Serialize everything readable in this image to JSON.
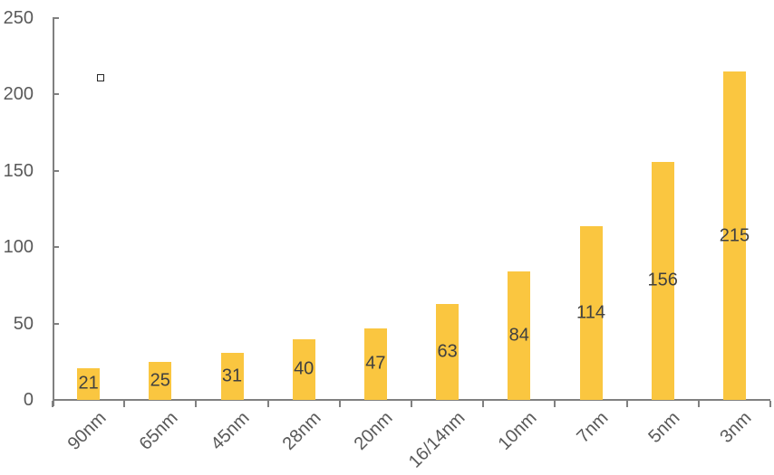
{
  "chart_data": {
    "type": "bar",
    "title": "",
    "xlabel": "",
    "ylabel": "",
    "categories": [
      "90nm",
      "65nm",
      "45nm",
      "28nm",
      "20nm",
      "16/14nm",
      "10nm",
      "7nm",
      "5nm",
      "3nm"
    ],
    "values": [
      21,
      25,
      31,
      40,
      47,
      63,
      84,
      114,
      156,
      215
    ],
    "data_labels": [
      "21",
      "25",
      "31",
      "40",
      "47",
      "63",
      "84",
      "114",
      "156",
      "215"
    ],
    "y_ticks": [
      0,
      50,
      100,
      150,
      200,
      250
    ],
    "y_tick_labels": [
      "0",
      "50",
      "100",
      "150",
      "200",
      "250"
    ],
    "ylim": [
      0,
      250
    ],
    "grid": false,
    "legend_position": "none",
    "bar_color": "#FAC640",
    "value_label_color": "#404040",
    "tick_label_color": "#595959",
    "axis_color": "#808080",
    "background_color": "#FFFFFF",
    "annotations": [
      {
        "name": "empty-square-marker",
        "shape": "hollow-square",
        "approx_value": 210,
        "approx_category_index": 0
      }
    ]
  }
}
